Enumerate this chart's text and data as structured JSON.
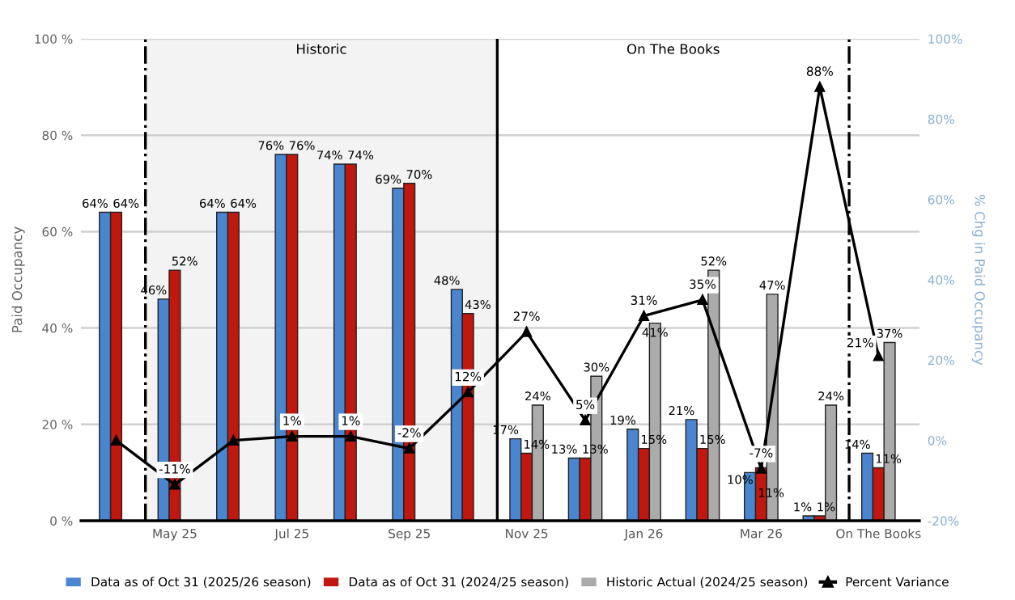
{
  "chart_data": {
    "type": "bar",
    "categories": [
      null,
      "May 25",
      null,
      "Jul 25",
      null,
      "Sep 25",
      null,
      "Nov 25",
      null,
      "Jan 26",
      null,
      "Mar 26",
      null,
      "On The Books"
    ],
    "series": [
      {
        "name": "Data as of Oct 31 (2025/26 season)",
        "color": "#4a86d0",
        "values": [
          64,
          46,
          64,
          76,
          74,
          69,
          48,
          17,
          13,
          19,
          21,
          10,
          1,
          14
        ],
        "value_labels": [
          "64%",
          "46%",
          "64%",
          "76%",
          "74%",
          "69%",
          "48%",
          "17%",
          "13%",
          "19%",
          "21%",
          "10%",
          "1%",
          "14%"
        ]
      },
      {
        "name": "Data as of Oct 31 (2024/25 season)",
        "color": "#c0170f",
        "values": [
          64,
          52,
          64,
          76,
          74,
          70,
          43,
          14,
          13,
          15,
          15,
          11,
          1,
          11
        ],
        "value_labels": [
          "64%",
          "52%",
          "64%",
          "76%",
          "74%",
          "70%",
          "43%",
          "14%",
          "13%",
          "15%",
          "15%",
          "11%",
          "1%",
          "11%"
        ]
      },
      {
        "name": "Historic Actual (2024/25 season)",
        "color": "#ababab",
        "values": [
          null,
          null,
          null,
          null,
          null,
          null,
          null,
          24,
          30,
          41,
          52,
          47,
          24,
          37
        ],
        "value_labels": [
          null,
          null,
          null,
          null,
          null,
          null,
          null,
          "24%",
          "30%",
          "41%",
          "52%",
          "47%",
          "24%",
          "37%"
        ]
      },
      {
        "name": "Percent Variance",
        "type": "line",
        "axis": "y2",
        "color": "#000000",
        "marker": "triangle",
        "values": [
          0,
          -11,
          0,
          1,
          1,
          -2,
          12,
          27,
          5,
          31,
          35,
          -7,
          88,
          21
        ],
        "value_labels": [
          null,
          "-11%",
          null,
          "1%",
          "1%",
          "-2%",
          "12%",
          "27%",
          "5%",
          "31%",
          "35%",
          "-7%",
          "88%",
          "21%"
        ]
      }
    ],
    "ylabel": "Paid Occupancy",
    "y2label": "% Chg in Paid Occupancy",
    "ylim": [
      0,
      100
    ],
    "yticks": [
      {
        "value": 0,
        "label": "0 %"
      },
      {
        "value": 20,
        "label": "20 %"
      },
      {
        "value": 40,
        "label": "40 %"
      },
      {
        "value": 60,
        "label": "60 %"
      },
      {
        "value": 80,
        "label": "80 %"
      },
      {
        "value": 100,
        "label": "100 %"
      }
    ],
    "y2lim": [
      -20,
      100
    ],
    "y2ticks": [
      {
        "value": -20,
        "label": "-20%"
      },
      {
        "value": 0,
        "label": "0%"
      },
      {
        "value": 20,
        "label": "20%"
      },
      {
        "value": 40,
        "label": "40%"
      },
      {
        "value": 60,
        "label": "60%"
      },
      {
        "value": 80,
        "label": "80%"
      },
      {
        "value": 100,
        "label": "100%"
      }
    ],
    "annotations": [
      "Historic",
      "On The Books"
    ],
    "grid": "y",
    "legend": "bottom"
  }
}
